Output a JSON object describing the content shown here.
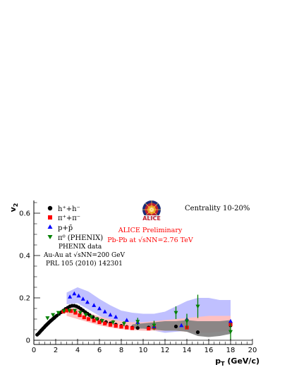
{
  "chart_data": {
    "type": "scatter",
    "title": "",
    "xlabel": "p_T (GeV/c)",
    "ylabel": "v_2",
    "xlim": [
      0,
      20
    ],
    "ylim": [
      -0.02,
      0.66
    ],
    "x_ticks": [
      "0",
      "2",
      "4",
      "6",
      "8",
      "10",
      "12",
      "14",
      "16",
      "18",
      "20"
    ],
    "y_ticks": [
      "0",
      "0.2",
      "0.4",
      "0.6"
    ],
    "grid": false,
    "legend_position": "top-left",
    "annotations": {
      "centrality": "Centrality 10-20%",
      "alice_line1": "ALICE Preliminary",
      "alice_line2": "Pb-Pb at √sNN=2.76 TeV",
      "phenix_line1": "PHENIX data",
      "phenix_line2": "Au-Au at √sNN=200 GeV",
      "phenix_line3": "PRL 105 (2010) 142301",
      "logo_text": "ALICE"
    },
    "series": [
      {
        "name": "h⁺+h⁻",
        "color": "#000000",
        "marker": "circle",
        "x": [
          0.3,
          0.45,
          0.55,
          0.65,
          0.75,
          0.85,
          0.95,
          1.05,
          1.15,
          1.25,
          1.35,
          1.45,
          1.55,
          1.65,
          1.75,
          1.85,
          1.95,
          2.1,
          2.3,
          2.5,
          2.7,
          2.9,
          3.1,
          3.3,
          3.5,
          3.7,
          3.9,
          4.1,
          4.3,
          4.5,
          4.7,
          4.9,
          5.1,
          5.4,
          5.8,
          6.2,
          6.6,
          7.0,
          7.5,
          8.0,
          8.5,
          9.0,
          9.5,
          10.5,
          13.0,
          15.0,
          18.0
        ],
        "y": [
          0.026,
          0.033,
          0.039,
          0.045,
          0.05,
          0.056,
          0.061,
          0.067,
          0.072,
          0.077,
          0.082,
          0.087,
          0.092,
          0.096,
          0.101,
          0.105,
          0.11,
          0.116,
          0.124,
          0.132,
          0.14,
          0.148,
          0.154,
          0.16,
          0.163,
          0.163,
          0.16,
          0.155,
          0.148,
          0.141,
          0.133,
          0.126,
          0.119,
          0.11,
          0.101,
          0.093,
          0.086,
          0.08,
          0.074,
          0.068,
          0.063,
          0.06,
          0.058,
          0.06,
          0.065,
          0.038,
          0.07
        ],
        "band": {
          "color": "#808080",
          "x": [
            9.0,
            10.0,
            11.0,
            12.0,
            13.0,
            14.0,
            15.0,
            16.0,
            17.0,
            18.0
          ],
          "lo": [
            0.055,
            0.055,
            0.05,
            0.045,
            0.045,
            0.04,
            0.02,
            0.015,
            0.02,
            0.03
          ],
          "hi": [
            0.075,
            0.08,
            0.085,
            0.09,
            0.09,
            0.095,
            0.09,
            0.09,
            0.09,
            0.095
          ]
        }
      },
      {
        "name": "π⁺+π⁻",
        "color": "#ff0000",
        "marker": "square",
        "x": [
          2.7,
          3.0,
          3.4,
          3.8,
          4.2,
          4.6,
          5.0,
          5.5,
          6.0,
          6.5,
          7.0,
          7.5,
          8.0,
          8.5,
          9.0,
          10.5,
          11.0,
          14.0,
          18.0
        ],
        "y": [
          0.135,
          0.14,
          0.138,
          0.13,
          0.118,
          0.108,
          0.1,
          0.093,
          0.085,
          0.079,
          0.073,
          0.068,
          0.064,
          0.06,
          0.057,
          0.055,
          0.06,
          0.06,
          0.075
        ],
        "band": {
          "color": "#ffc0c0",
          "x": [
            3.0,
            4.0,
            5.0,
            6.0,
            7.0,
            8.0,
            9.0,
            10.0,
            11.0,
            12.0,
            13.0,
            14.0,
            15.0,
            16.0,
            17.0,
            18.0
          ],
          "lo": [
            0.115,
            0.1,
            0.085,
            0.07,
            0.06,
            0.052,
            0.048,
            0.045,
            0.045,
            0.045,
            0.045,
            0.04,
            0.035,
            0.035,
            0.04,
            0.045
          ],
          "hi": [
            0.155,
            0.15,
            0.13,
            0.112,
            0.1,
            0.09,
            0.085,
            0.085,
            0.09,
            0.095,
            0.1,
            0.105,
            0.11,
            0.115,
            0.115,
            0.115
          ]
        }
      },
      {
        "name": "p+p̄",
        "color": "#0000ff",
        "marker": "triangle-up",
        "x": [
          3.3,
          3.7,
          4.1,
          4.5,
          4.9,
          5.5,
          6.0,
          6.5,
          7.0,
          7.5,
          8.5,
          9.5,
          11.0,
          13.5,
          14.0,
          18.0
        ],
        "y": [
          0.205,
          0.22,
          0.21,
          0.195,
          0.18,
          0.165,
          0.15,
          0.135,
          0.12,
          0.11,
          0.095,
          0.085,
          0.065,
          0.07,
          0.1,
          0.09
        ],
        "band": {
          "color": "#c0c0ff",
          "x": [
            3.0,
            4.0,
            5.0,
            6.0,
            7.0,
            8.0,
            9.0,
            10.0,
            11.0,
            12.0,
            13.0,
            14.0,
            15.0,
            16.0,
            17.0,
            18.0
          ],
          "lo": [
            0.17,
            0.175,
            0.145,
            0.115,
            0.09,
            0.075,
            0.065,
            0.055,
            0.045,
            0.035,
            0.04,
            0.045,
            0.06,
            0.07,
            0.07,
            0.07
          ],
          "hi": [
            0.225,
            0.25,
            0.23,
            0.195,
            0.165,
            0.14,
            0.13,
            0.125,
            0.125,
            0.135,
            0.16,
            0.185,
            0.2,
            0.2,
            0.19,
            0.19
          ]
        }
      },
      {
        "name": "π⁰ (PHENIX)",
        "color": "#008000",
        "marker": "triangle-down",
        "x": [
          1.25,
          1.75,
          2.25,
          2.75,
          3.25,
          3.75,
          4.25,
          4.75,
          5.25,
          5.75,
          6.25,
          7.25,
          8.25,
          9.5,
          11.0,
          13.0,
          14.0,
          15.0,
          18.0
        ],
        "y": [
          0.105,
          0.12,
          0.13,
          0.138,
          0.14,
          0.14,
          0.13,
          0.12,
          0.11,
          0.1,
          0.092,
          0.085,
          0.078,
          0.088,
          0.07,
          0.13,
          0.09,
          0.16,
          0.04
        ],
        "err": [
          0.004,
          0.004,
          0.004,
          0.004,
          0.004,
          0.005,
          0.005,
          0.006,
          0.006,
          0.007,
          0.008,
          0.01,
          0.012,
          0.018,
          0.022,
          0.03,
          0.035,
          0.055,
          0.04
        ]
      }
    ]
  }
}
